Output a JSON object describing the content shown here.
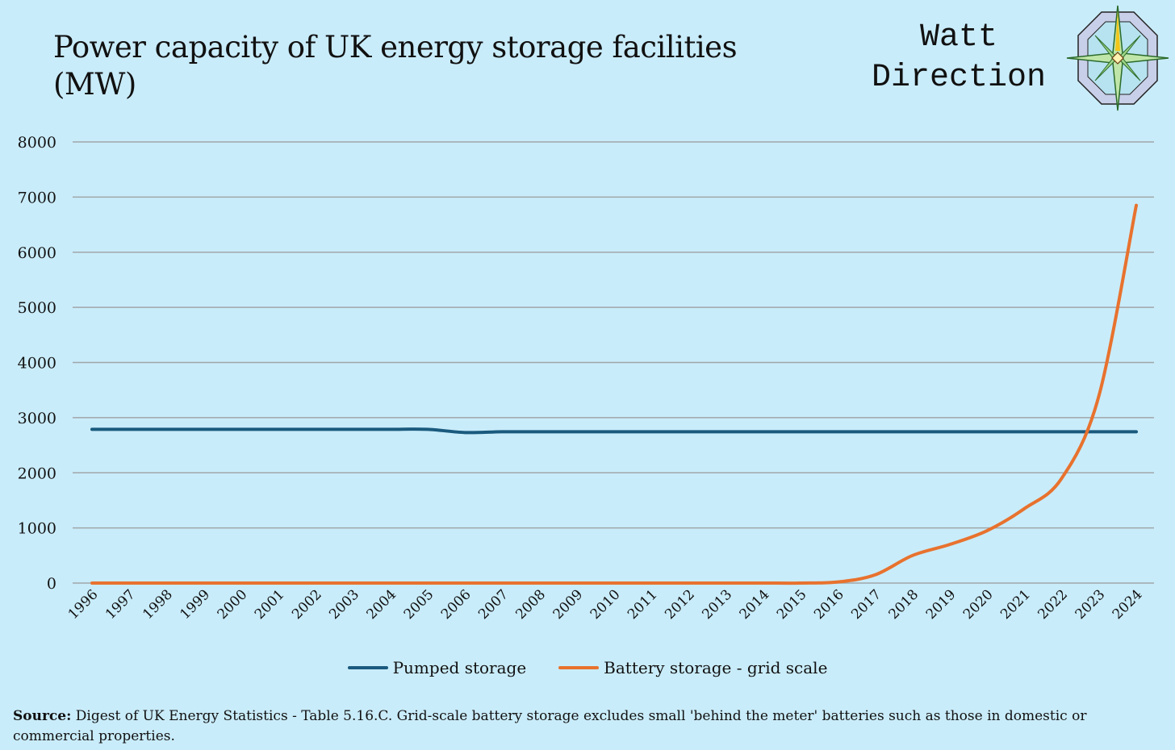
{
  "brand": {
    "line1": "Watt",
    "line2": "Direction"
  },
  "footer": {
    "source_label": "Source:",
    "source_text": "Digest of UK Energy Statistics - Table 5.16.C. Grid-scale battery storage excludes small 'behind the meter' batteries such as those in domestic or commercial properties."
  },
  "colors": {
    "background": "#c9ecfa",
    "pumped": "#1a5a7e",
    "battery": "#e8722e",
    "grid": "#a0a6aa"
  },
  "chart_data": {
    "type": "line",
    "title": "Power capacity of UK energy storage facilities (MW)",
    "xlabel": "",
    "ylabel": "",
    "ylim": [
      0,
      8000
    ],
    "yticks": [
      0,
      1000,
      2000,
      3000,
      4000,
      5000,
      6000,
      7000,
      8000
    ],
    "grid": true,
    "legend_position": "bottom",
    "x": [
      "1996",
      "1997",
      "1998",
      "1999",
      "2000",
      "2001",
      "2002",
      "2003",
      "2004",
      "2005",
      "2006",
      "2007",
      "2008",
      "2009",
      "2010",
      "2011",
      "2012",
      "2013",
      "2014",
      "2015",
      "2016",
      "2017",
      "2018",
      "2019",
      "2020",
      "2021",
      "2022",
      "2023",
      "2024"
    ],
    "series": [
      {
        "name": "Pumped storage",
        "color": "#1a5a7e",
        "values": [
          2788,
          2788,
          2788,
          2788,
          2788,
          2788,
          2788,
          2788,
          2788,
          2788,
          2730,
          2744,
          2744,
          2744,
          2744,
          2744,
          2744,
          2744,
          2744,
          2744,
          2744,
          2744,
          2744,
          2744,
          2744,
          2744,
          2744,
          2744,
          2744
        ]
      },
      {
        "name": "Battery storage - grid scale",
        "color": "#e8722e",
        "values": [
          0,
          0,
          0,
          0,
          0,
          0,
          0,
          0,
          0,
          0,
          0,
          0,
          0,
          0,
          0,
          0,
          0,
          0,
          0,
          0,
          20,
          150,
          500,
          700,
          950,
          1350,
          1900,
          3400,
          6850
        ]
      }
    ]
  }
}
